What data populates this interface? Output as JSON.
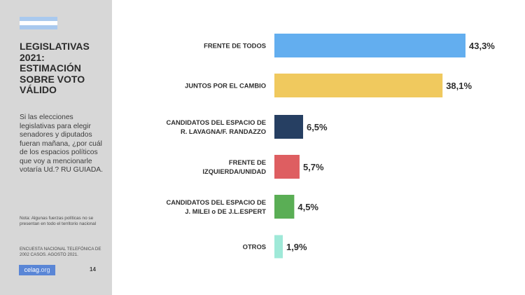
{
  "sidebar": {
    "title": "LEGISLATIVAS\n2021:\nESTIMACIÓN\nSOBRE VOTO\nVÁLIDO",
    "question": "Si las elecciones legislativas para elegir senadores y diputados fueran mañana, ¿por cuál de los espacios políticos que voy a mencionarle votaría Ud.? RU GUIADA.",
    "note": "Nota: Algunas fuerzas políticas no se presentan en todo el territorio nacional",
    "source": "ENCUESTA NACIONAL TELEFÓNICA DE 2002 CASOS. AGOSTO 2021.",
    "logo_main": "celag",
    "logo_ext": ".org",
    "page_number": "14",
    "flag_colors": [
      "#a9c9ee",
      "#ffffff",
      "#a9c9ee"
    ]
  },
  "chart_data": {
    "type": "bar",
    "orientation": "horizontal",
    "categories": [
      [
        "FRENTE DE TODOS"
      ],
      [
        "JUNTOS POR EL CAMBIO"
      ],
      [
        "CANDIDATOS DEL ESPACIO DE",
        "R. LAVAGNA/F. RANDAZZO"
      ],
      [
        "FRENTE DE",
        "IZQUIERDA/UNIDAD"
      ],
      [
        "CANDIDATOS DEL ESPACIO DE",
        "J. MILEI o DE J.L.ESPERT"
      ],
      [
        "OTROS"
      ]
    ],
    "values": [
      43.3,
      38.1,
      6.5,
      5.7,
      4.5,
      1.9
    ],
    "value_labels": [
      "43,3%",
      "38,1%",
      "6,5%",
      "5,7%",
      "4,5%",
      "1,9%"
    ],
    "colors": [
      "#63aeef",
      "#f0c95e",
      "#263f62",
      "#de5e61",
      "#5aae55",
      "#9fe9d8"
    ],
    "xlim": [
      0,
      43.3
    ],
    "grid": false,
    "legend": false
  }
}
